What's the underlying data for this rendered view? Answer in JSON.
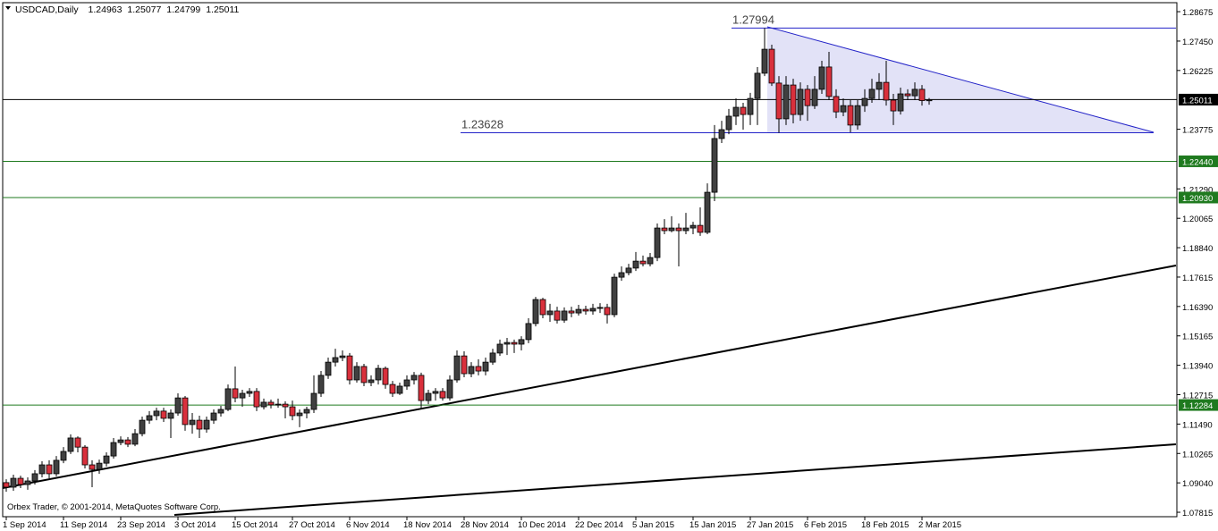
{
  "chart_data": {
    "type": "candlestick",
    "symbol": "USDCAD,Daily",
    "copyright": "Orbex Trader, © 2001-2014, MetaQuotes Software Corp.",
    "up_color": "#404040",
    "down_color": "#d9303c",
    "categories": [
      "1 Sep 2014",
      null,
      null,
      null,
      null,
      null,
      null,
      null,
      "11 Sep 2014",
      null,
      null,
      null,
      null,
      null,
      null,
      null,
      "23 Sep 2014",
      null,
      null,
      null,
      null,
      null,
      null,
      null,
      "3 Oct 2014",
      null,
      null,
      null,
      null,
      null,
      null,
      null,
      "15 Oct 2014",
      null,
      null,
      null,
      null,
      null,
      null,
      null,
      "27 Oct 2014",
      null,
      null,
      null,
      null,
      null,
      null,
      null,
      "6 Nov 2014",
      null,
      null,
      null,
      null,
      null,
      null,
      null,
      "18 Nov 2014",
      null,
      null,
      null,
      null,
      null,
      null,
      null,
      "28 Nov 2014",
      null,
      null,
      null,
      null,
      null,
      null,
      null,
      "10 Dec 2014",
      null,
      null,
      null,
      null,
      null,
      null,
      null,
      "22 Dec 2014",
      null,
      null,
      null,
      null,
      null,
      null,
      null,
      "5 Jan 2015",
      null,
      null,
      null,
      null,
      null,
      null,
      null,
      "15 Jan 2015",
      null,
      null,
      null,
      null,
      null,
      null,
      null,
      "27 Jan 2015",
      null,
      null,
      null,
      null,
      null,
      null,
      null,
      "6 Feb 2015",
      null,
      null,
      null,
      null,
      null,
      null,
      null,
      "18 Feb 2015",
      null,
      null,
      null,
      null,
      null,
      null,
      null,
      "2 Mar 2015",
      null
    ],
    "open": [
      1.0905,
      1.0886,
      1.0923,
      1.0897,
      1.0912,
      1.0942,
      1.0979,
      1.0942,
      1.0998,
      1.1035,
      1.1091,
      1.1053,
      1.0979,
      1.096,
      1.0986,
      1.1016,
      1.1072,
      1.1083,
      1.1065,
      1.1109,
      1.1165,
      1.1184,
      1.1203,
      1.1173,
      1.1195,
      1.1258,
      1.1147,
      1.1165,
      1.1128,
      1.1165,
      1.1195,
      1.121,
      1.1296,
      1.1258,
      1.1277,
      1.1285,
      1.1221,
      1.124,
      1.1229,
      1.1232,
      1.1221,
      1.1184,
      1.1195,
      1.121,
      1.1277,
      1.1352,
      1.1407,
      1.1426,
      1.1433,
      1.1333,
      1.1389,
      1.1322,
      1.1333,
      1.1381,
      1.1314,
      1.1277,
      1.1307,
      1.1333,
      1.1352,
      1.1247,
      1.1277,
      1.1285,
      1.1258,
      1.1333,
      1.1433,
      1.1359,
      1.1389,
      1.137,
      1.1407,
      1.1445,
      1.1482,
      1.1489,
      1.1482,
      1.1501,
      1.1568,
      1.1668,
      1.1605,
      1.162,
      1.1582,
      1.162,
      1.1612,
      1.1627,
      1.162,
      1.1631,
      1.1635,
      1.1605,
      1.1761,
      1.178,
      1.1799,
      1.1828,
      1.1817,
      1.1843,
      1.1966,
      1.1955,
      1.1966,
      1.1955,
      1.1966,
      1.1977,
      1.1948,
      1.2115,
      1.2339,
      1.2376,
      1.2432,
      1.2469,
      1.2439,
      1.2506,
      1.2611,
      1.2711,
      1.257,
      1.2421,
      1.2562,
      1.2439,
      1.2544,
      1.2476,
      1.2544,
      1.2637,
      1.2514,
      1.245,
      1.2476,
      1.2395,
      1.2476,
      1.2506,
      1.2544,
      1.2573,
      1.2499,
      1.2454,
      1.2525,
      1.2517,
      1.2544,
      1.24963
    ],
    "high": [
      1.0919,
      1.0938,
      1.0934,
      1.0927,
      1.0957,
      1.0994,
      1.0998,
      1.1016,
      1.1053,
      1.1106,
      1.1098,
      1.1061,
      1.0998,
      1.1001,
      1.1031,
      1.1091,
      1.1098,
      1.1095,
      1.1128,
      1.118,
      1.1203,
      1.1217,
      1.1217,
      1.121,
      1.1277,
      1.1266,
      1.1195,
      1.1184,
      1.118,
      1.121,
      1.1225,
      1.1314,
      1.1389,
      1.1292,
      1.1299,
      1.1299,
      1.1255,
      1.1251,
      1.1255,
      1.1244,
      1.1247,
      1.121,
      1.1221,
      1.1352,
      1.137,
      1.1426,
      1.1463,
      1.1456,
      1.1445,
      1.1407,
      1.14,
      1.1352,
      1.1396,
      1.1389,
      1.1329,
      1.1322,
      1.1352,
      1.1366,
      1.1363,
      1.1292,
      1.1299,
      1.1299,
      1.1352,
      1.1456,
      1.1452,
      1.1407,
      1.1419,
      1.1426,
      1.1463,
      1.1501,
      1.1508,
      1.1501,
      1.1515,
      1.159,
      1.1679,
      1.1675,
      1.165,
      1.1638,
      1.1635,
      1.1638,
      1.1646,
      1.1642,
      1.165,
      1.1653,
      1.165,
      1.1776,
      1.1806,
      1.1817,
      1.1866,
      1.1851,
      1.1862,
      1.1985,
      1.2003,
      1.2015,
      1.1985,
      1.2029,
      1.1992,
      1.2052,
      1.2152,
      1.2395,
      1.2413,
      1.2462,
      1.2506,
      1.2488,
      1.2529,
      1.2637,
      1.27994,
      1.273,
      1.2599,
      1.2599,
      1.2588,
      1.2573,
      1.2562,
      1.2599,
      1.2663,
      1.27,
      1.2544,
      1.2506,
      1.2499,
      1.2499,
      1.2544,
      1.2588,
      1.2611,
      1.2663,
      1.2525,
      1.2551,
      1.2544,
      1.2573,
      1.2562,
      1.25077
    ],
    "low": [
      1.0867,
      1.0871,
      1.0882,
      1.0875,
      1.0897,
      1.0927,
      1.0923,
      1.0931,
      1.0986,
      1.1024,
      1.1031,
      1.0964,
      1.0886,
      1.0942,
      1.0972,
      1.1005,
      1.1061,
      1.1053,
      1.1057,
      1.1098,
      1.115,
      1.1165,
      1.1158,
      1.1091,
      1.1184,
      1.1121,
      1.1109,
      1.1091,
      1.1113,
      1.115,
      1.118,
      1.1203,
      1.124,
      1.1221,
      1.1262,
      1.1203,
      1.121,
      1.1214,
      1.1217,
      1.1173,
      1.1165,
      1.1136,
      1.1173,
      1.1195,
      1.1262,
      1.1337,
      1.1389,
      1.1411,
      1.1314,
      1.1322,
      1.1307,
      1.1307,
      1.1314,
      1.1296,
      1.1262,
      1.127,
      1.1292,
      1.1314,
      1.121,
      1.1232,
      1.1247,
      1.1247,
      1.1247,
      1.1322,
      1.1344,
      1.1344,
      1.1352,
      1.1352,
      1.1396,
      1.1433,
      1.1437,
      1.1445,
      1.1456,
      1.1486,
      1.1556,
      1.159,
      1.1575,
      1.1568,
      1.1571,
      1.1594,
      1.1601,
      1.1605,
      1.1605,
      1.1612,
      1.1568,
      1.1594,
      1.1746,
      1.1769,
      1.1787,
      1.1806,
      1.1806,
      1.1828,
      1.194,
      1.1948,
      1.1806,
      1.194,
      1.194,
      1.1933,
      1.194,
      1.2078,
      1.232,
      1.2357,
      1.2395,
      1.2376,
      1.2395,
      1.2395,
      1.2599,
      1.2558,
      1.23628,
      1.2395,
      1.2402,
      1.2413,
      1.2413,
      1.2462,
      1.2525,
      1.2499,
      1.2424,
      1.2432,
      1.2365,
      1.2376,
      1.245,
      1.2488,
      1.2499,
      1.2476,
      1.2395,
      1.2439,
      1.2499,
      1.2499,
      1.2476,
      1.24799
    ],
    "close": [
      1.0886,
      1.0923,
      1.0897,
      1.0912,
      1.0942,
      1.0979,
      1.0942,
      1.0998,
      1.1035,
      1.1091,
      1.1053,
      1.0979,
      1.096,
      1.0986,
      1.1016,
      1.1072,
      1.1083,
      1.1065,
      1.1109,
      1.1165,
      1.1184,
      1.1203,
      1.1173,
      1.1195,
      1.1258,
      1.1147,
      1.1165,
      1.1128,
      1.1165,
      1.1195,
      1.121,
      1.1296,
      1.1258,
      1.1277,
      1.1285,
      1.1221,
      1.124,
      1.1229,
      1.1232,
      1.1221,
      1.1184,
      1.1195,
      1.121,
      1.1277,
      1.1352,
      1.1407,
      1.1426,
      1.1433,
      1.1333,
      1.1389,
      1.1322,
      1.1333,
      1.1381,
      1.1314,
      1.1277,
      1.1307,
      1.1333,
      1.1352,
      1.1247,
      1.1277,
      1.1285,
      1.1258,
      1.1333,
      1.1433,
      1.1359,
      1.1389,
      1.137,
      1.1407,
      1.1445,
      1.1482,
      1.1489,
      1.1482,
      1.1501,
      1.1568,
      1.1668,
      1.1605,
      1.162,
      1.1582,
      1.162,
      1.1612,
      1.1627,
      1.162,
      1.1631,
      1.1635,
      1.1605,
      1.1761,
      1.178,
      1.1799,
      1.1828,
      1.1817,
      1.1843,
      1.1966,
      1.1955,
      1.1966,
      1.1955,
      1.1966,
      1.1977,
      1.1948,
      1.2115,
      1.2339,
      1.2376,
      1.2432,
      1.2469,
      1.2439,
      1.2506,
      1.2611,
      1.2711,
      1.257,
      1.2421,
      1.2562,
      1.2439,
      1.2544,
      1.2476,
      1.2544,
      1.2637,
      1.2514,
      1.245,
      1.2476,
      1.2395,
      1.2476,
      1.2506,
      1.2544,
      1.2573,
      1.2499,
      1.2454,
      1.2525,
      1.2517,
      1.2544,
      1.2497,
      1.25011
    ],
    "ylim": [
      1.0763,
      1.2905
    ],
    "yticks": [
      1.28675,
      {
        "value": 1.2745,
        "label": "1.27450"
      },
      1.26225,
      1.23775,
      {
        "value": 1.2129,
        "label": "1.21290"
      },
      1.20065,
      {
        "value": 1.1884,
        "label": "1.18840"
      },
      1.17615,
      {
        "value": 1.1639,
        "label": "1.16390"
      },
      1.15165,
      {
        "value": 1.1394,
        "label": "1.13940"
      },
      1.12715,
      {
        "value": 1.1149,
        "label": "1.11490"
      },
      1.10265,
      {
        "value": 1.0904,
        "label": "1.09040"
      },
      1.07815
    ],
    "trend_levels": [
      1.27994,
      1.23628
    ],
    "trend_color": "#2323c8",
    "horizontal_levels": [
      {
        "value": 1.2244,
        "label": "1.22440"
      },
      {
        "value": 1.2093,
        "label": "1.20930"
      },
      1.12284
    ],
    "level_color": "#1f7a1f",
    "grid": false
  }
}
